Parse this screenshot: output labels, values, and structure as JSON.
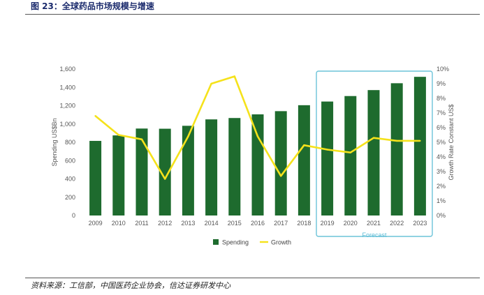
{
  "figure": {
    "title": "图 23：全球药品市场规模与增速",
    "source": "资料来源：工信部，中国医药企业协会，信达证券研发中心"
  },
  "colors": {
    "bar": "#1e6b2e",
    "line": "#f5e21b",
    "forecast_box": "#6cc3d8",
    "title": "#1a2a6c"
  },
  "chart_data": {
    "type": "bar",
    "categories": [
      "2009",
      "2010",
      "2011",
      "2012",
      "2013",
      "2014",
      "2015",
      "2016",
      "2017",
      "2018",
      "2019",
      "2020",
      "2021",
      "2022",
      "2023"
    ],
    "series": [
      {
        "name": "Spending",
        "type": "bar",
        "axis": "left",
        "values": [
          815,
          875,
          950,
          948,
          980,
          1050,
          1065,
          1105,
          1140,
          1205,
          1245,
          1305,
          1370,
          1445,
          1515
        ]
      },
      {
        "name": "Growth",
        "type": "line",
        "axis": "right",
        "values": [
          6.8,
          5.5,
          5.2,
          2.5,
          5.4,
          9.0,
          9.5,
          5.4,
          2.7,
          4.8,
          4.5,
          4.3,
          5.3,
          5.1,
          5.1
        ]
      }
    ],
    "ylabel": "Spending US$Bn",
    "y2label": "Growth Rate Constant US$",
    "ylim": [
      0,
      1600
    ],
    "yticks": [
      "0",
      "200",
      "400",
      "600",
      "800",
      "1,000",
      "1,200",
      "1,400",
      "1,600"
    ],
    "y2lim": [
      0,
      10
    ],
    "y2ticks": [
      "0%",
      "1%",
      "2%",
      "3%",
      "4%",
      "5%",
      "6%",
      "7%",
      "8%",
      "9%",
      "10%"
    ],
    "forecast_label": "Forecast",
    "forecast_range": [
      "2019",
      "2023"
    ],
    "legend": [
      "Spending",
      "Growth"
    ],
    "legend_position": "bottom-center",
    "grid": false
  }
}
